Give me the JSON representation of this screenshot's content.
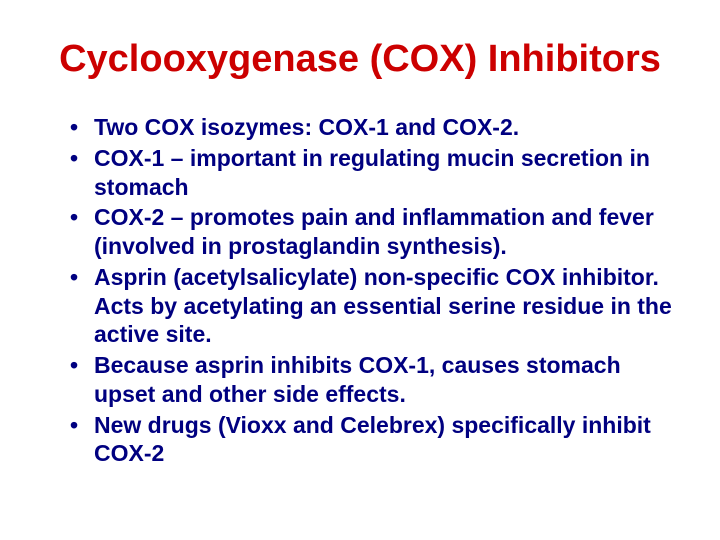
{
  "title": {
    "text": "Cyclooxygenase (COX) Inhibitors",
    "color": "#cc0000",
    "fontsize": 38
  },
  "bullets": {
    "color": "#000080",
    "fontsize": 23,
    "line_height": 1.25,
    "items": [
      "Two COX isozymes: COX-1 and COX-2.",
      "COX-1 – important in regulating mucin secretion in stomach",
      "COX-2 – promotes pain and inflammation and fever (involved in prostaglandin synthesis).",
      "Asprin (acetylsalicylate) non-specific COX inhibitor. Acts by acetylating an essential serine residue in the active site.",
      "Because asprin inhibits COX-1, causes stomach upset and other side effects.",
      "New drugs (Vioxx and Celebrex) specifically inhibit COX-2"
    ]
  }
}
